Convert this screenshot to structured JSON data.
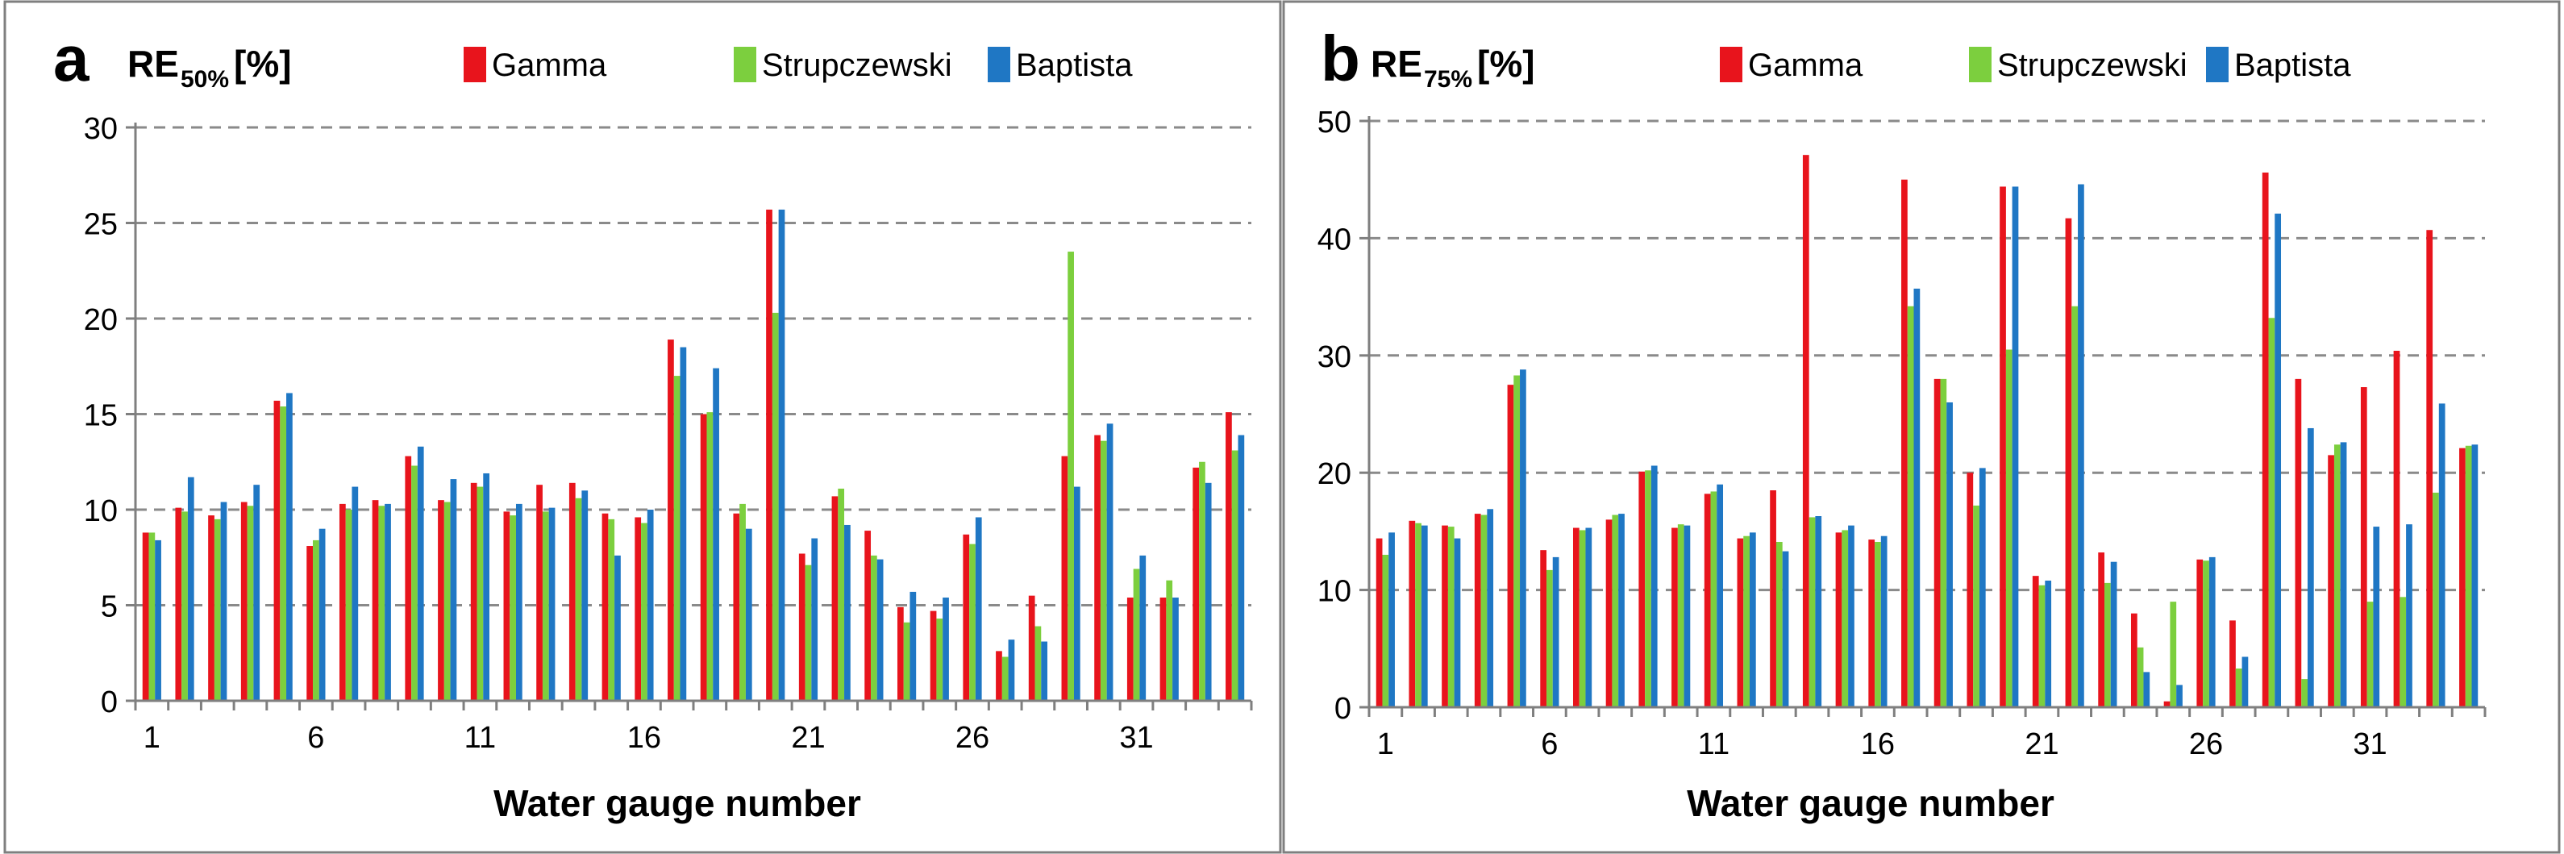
{
  "colors": {
    "gamma": "#e8141c",
    "strup": "#7ccf3e",
    "bapt": "#1f77c4",
    "grid": "#8a8a8a",
    "axis": "#7f7f7f",
    "frame": "#7f7f7f"
  },
  "chart_data": [
    {
      "type": "bar",
      "panel_letter": "a",
      "title_main": "RE",
      "title_sub": "50%",
      "title_tail": "[%]",
      "xlabel": "Water gauge number",
      "ylabel": "RE50% [%]",
      "ylim": [
        0,
        30
      ],
      "yticks": [
        0,
        5,
        10,
        15,
        20,
        25,
        30
      ],
      "yticks_label": [
        "0",
        "5",
        "10",
        "15",
        "20",
        "25",
        "30"
      ],
      "xticks": [
        1,
        6,
        11,
        16,
        21,
        26,
        31
      ],
      "xtick_labels": [
        "1",
        "6",
        "11",
        "16",
        "21",
        "26",
        "31"
      ],
      "grid": true,
      "legend_position": "top",
      "categories": [
        1,
        2,
        3,
        4,
        5,
        6,
        7,
        8,
        9,
        10,
        11,
        12,
        13,
        14,
        15,
        16,
        17,
        18,
        19,
        20,
        21,
        22,
        23,
        24,
        25,
        26,
        27,
        28,
        29,
        30,
        31,
        32,
        33,
        34
      ],
      "series": [
        {
          "name": "Gamma",
          "values": [
            8.8,
            10.1,
            9.7,
            10.4,
            15.7,
            8.1,
            10.3,
            10.5,
            12.8,
            10.5,
            11.4,
            9.9,
            11.3,
            11.4,
            9.8,
            9.6,
            18.9,
            15.0,
            9.8,
            25.7,
            7.7,
            10.7,
            8.9,
            4.9,
            4.7,
            8.7,
            2.6,
            5.5,
            12.8,
            13.9,
            5.4,
            5.4,
            12.2,
            15.1
          ]
        },
        {
          "name": "Strupczewski",
          "values": [
            8.8,
            9.9,
            9.5,
            10.2,
            15.4,
            8.4,
            10.0,
            10.2,
            12.3,
            10.4,
            11.2,
            9.7,
            9.9,
            10.6,
            9.5,
            9.3,
            17.0,
            15.1,
            10.3,
            20.3,
            7.1,
            11.1,
            7.6,
            4.1,
            4.3,
            8.2,
            2.3,
            3.9,
            23.5,
            13.6,
            6.9,
            6.3,
            12.5,
            13.1
          ]
        },
        {
          "name": "Baptista",
          "values": [
            8.4,
            11.7,
            10.4,
            11.3,
            16.1,
            9.0,
            11.2,
            10.3,
            13.3,
            11.6,
            11.9,
            10.3,
            10.1,
            11.0,
            7.6,
            10.0,
            18.5,
            17.4,
            9.0,
            25.7,
            8.5,
            9.2,
            7.4,
            5.7,
            5.4,
            9.6,
            3.2,
            3.1,
            11.2,
            14.5,
            7.6,
            5.4,
            11.4,
            13.9
          ]
        }
      ]
    },
    {
      "type": "bar",
      "panel_letter": "b",
      "title_main": "RE",
      "title_sub": "75%",
      "title_tail": "[%]",
      "xlabel": "Water gauge number",
      "ylabel": "RE75% [%]",
      "ylim": [
        0,
        50
      ],
      "yticks": [
        0,
        10,
        20,
        30,
        40,
        50
      ],
      "yticks_label": [
        "0",
        "10",
        "20",
        "30",
        "40",
        "50"
      ],
      "xticks": [
        1,
        6,
        11,
        16,
        21,
        26,
        31
      ],
      "xtick_labels": [
        "1",
        "6",
        "11",
        "16",
        "21",
        "26",
        "31"
      ],
      "grid": true,
      "legend_position": "top",
      "categories": [
        1,
        2,
        3,
        4,
        5,
        6,
        7,
        8,
        9,
        10,
        11,
        12,
        13,
        14,
        15,
        16,
        17,
        18,
        19,
        20,
        21,
        22,
        23,
        24,
        25,
        26,
        27,
        28,
        29,
        30,
        31,
        32,
        33,
        34
      ],
      "series": [
        {
          "name": "Gamma",
          "values": [
            14.4,
            15.9,
            15.5,
            16.5,
            27.5,
            13.4,
            15.3,
            16.0,
            20.1,
            15.3,
            18.2,
            14.4,
            18.5,
            47.1,
            14.9,
            14.3,
            45.0,
            28.0,
            20.0,
            44.4,
            11.2,
            41.7,
            13.2,
            8.0,
            0.5,
            12.6,
            7.4,
            45.6,
            28.0,
            21.5,
            27.3,
            30.4,
            40.7,
            22.1
          ]
        },
        {
          "name": "Strupczewski",
          "values": [
            13.0,
            15.7,
            15.4,
            16.4,
            28.3,
            11.7,
            15.1,
            16.4,
            20.2,
            15.6,
            18.4,
            14.6,
            14.1,
            16.2,
            15.1,
            14.1,
            34.2,
            28.0,
            17.2,
            30.5,
            10.4,
            34.2,
            10.6,
            5.1,
            9.0,
            12.5,
            3.3,
            33.2,
            2.4,
            22.4,
            9.0,
            9.4,
            18.3,
            22.3
          ]
        },
        {
          "name": "Baptista",
          "values": [
            14.9,
            15.5,
            14.4,
            16.9,
            28.8,
            12.8,
            15.3,
            16.5,
            20.6,
            15.5,
            19.0,
            14.9,
            13.3,
            16.3,
            15.5,
            14.6,
            35.7,
            26.0,
            20.4,
            44.4,
            10.8,
            44.6,
            12.4,
            3.0,
            1.9,
            12.8,
            4.3,
            42.1,
            23.8,
            22.6,
            15.4,
            15.6,
            25.9,
            22.4
          ]
        }
      ]
    }
  ]
}
